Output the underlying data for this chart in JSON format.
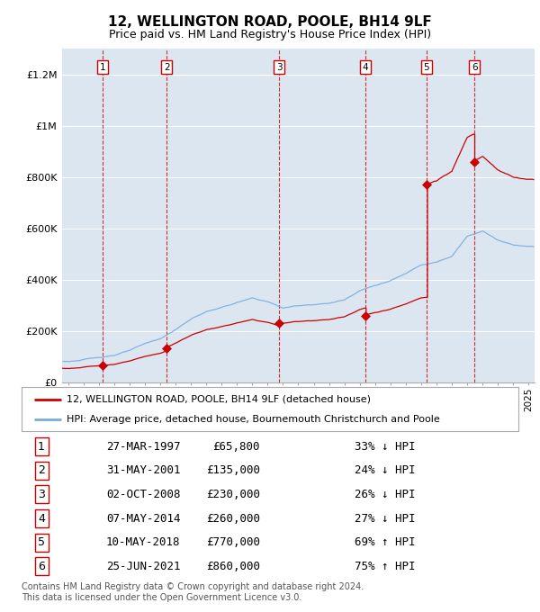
{
  "title": "12, WELLINGTON ROAD, POOLE, BH14 9LF",
  "subtitle": "Price paid vs. HM Land Registry's House Price Index (HPI)",
  "title_fontsize": 11,
  "subtitle_fontsize": 9,
  "background_color": "#ffffff",
  "plot_bg_color": "#dce6f1",
  "ylim": [
    0,
    1300000
  ],
  "yticks": [
    0,
    200000,
    400000,
    600000,
    800000,
    1000000,
    1200000
  ],
  "ytick_labels": [
    "£0",
    "£200K",
    "£400K",
    "£600K",
    "£800K",
    "£1M",
    "£1.2M"
  ],
  "xmin": 1994.6,
  "xmax": 2025.4,
  "transactions": [
    {
      "num": 1,
      "date": "27-MAR-1997",
      "year": 1997.23,
      "price": 65800,
      "pct": "33%",
      "dir": "↓"
    },
    {
      "num": 2,
      "date": "31-MAY-2001",
      "year": 2001.41,
      "price": 135000,
      "pct": "24%",
      "dir": "↓"
    },
    {
      "num": 3,
      "date": "02-OCT-2008",
      "year": 2008.75,
      "price": 230000,
      "pct": "26%",
      "dir": "↓"
    },
    {
      "num": 4,
      "date": "07-MAY-2014",
      "year": 2014.35,
      "price": 260000,
      "pct": "27%",
      "dir": "↓"
    },
    {
      "num": 5,
      "date": "10-MAY-2018",
      "year": 2018.35,
      "price": 770000,
      "pct": "69%",
      "dir": "↑"
    },
    {
      "num": 6,
      "date": "25-JUN-2021",
      "year": 2021.48,
      "price": 860000,
      "pct": "75%",
      "dir": "↑"
    }
  ],
  "red_line_color": "#cc0000",
  "blue_line_color": "#7aaddb",
  "dashed_line_color": "#cc0000",
  "marker_box_color": "#cc0000",
  "grid_color": "#ffffff",
  "footnote": "Contains HM Land Registry data © Crown copyright and database right 2024.\nThis data is licensed under the Open Government Licence v3.0.",
  "legend_entries": [
    "12, WELLINGTON ROAD, POOLE, BH14 9LF (detached house)",
    "HPI: Average price, detached house, Bournemouth Christchurch and Poole"
  ],
  "table_rows": [
    [
      "1",
      "27-MAR-1997",
      "£65,800",
      "33% ↓ HPI"
    ],
    [
      "2",
      "31-MAY-2001",
      "£135,000",
      "24% ↓ HPI"
    ],
    [
      "3",
      "02-OCT-2008",
      "£230,000",
      "26% ↓ HPI"
    ],
    [
      "4",
      "07-MAY-2014",
      "£260,000",
      "27% ↓ HPI"
    ],
    [
      "5",
      "10-MAY-2018",
      "£770,000",
      "69% ↑ HPI"
    ],
    [
      "6",
      "25-JUN-2021",
      "£860,000",
      "75% ↑ HPI"
    ]
  ]
}
